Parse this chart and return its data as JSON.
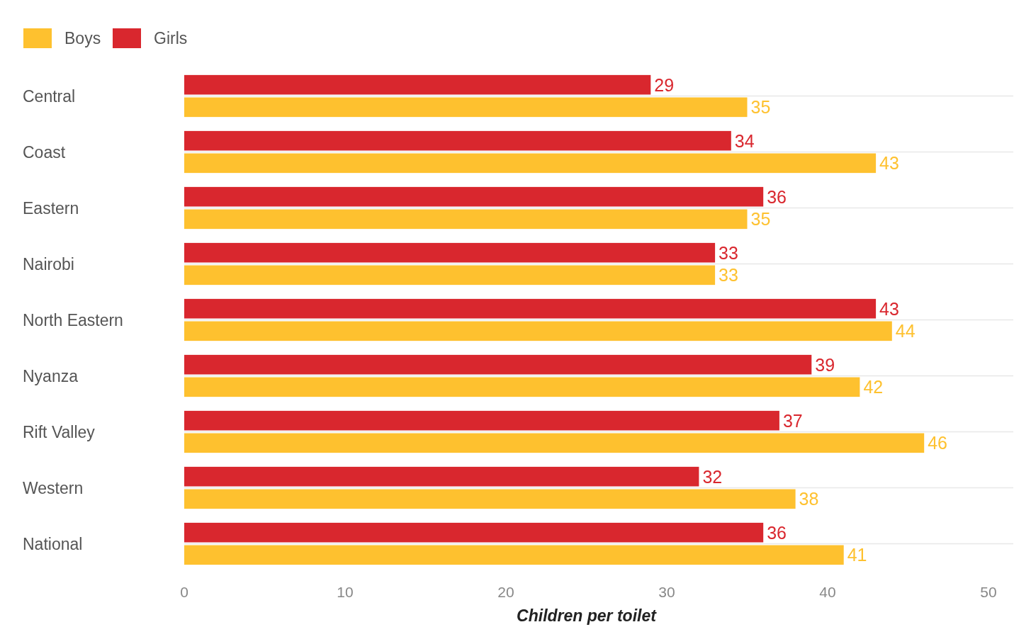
{
  "chart_data": {
    "type": "bar",
    "orientation": "horizontal",
    "categories": [
      "Central",
      "Coast",
      "Eastern",
      "Nairobi",
      "North Eastern",
      "Nyanza",
      "Rift Valley",
      "Western",
      "National"
    ],
    "series": [
      {
        "name": "Boys",
        "color": "#fec12f",
        "values": [
          35,
          43,
          35,
          33,
          44,
          42,
          46,
          38,
          41
        ]
      },
      {
        "name": "Girls",
        "color": "#d9272e",
        "values": [
          29,
          34,
          36,
          33,
          43,
          39,
          37,
          32,
          36
        ]
      }
    ],
    "xlabel": "Children per toilet",
    "xlim": [
      0,
      50
    ],
    "xticks": [
      0,
      10,
      20,
      30,
      40,
      50
    ],
    "grid": "y",
    "legend": "top left",
    "data_labels": true
  }
}
